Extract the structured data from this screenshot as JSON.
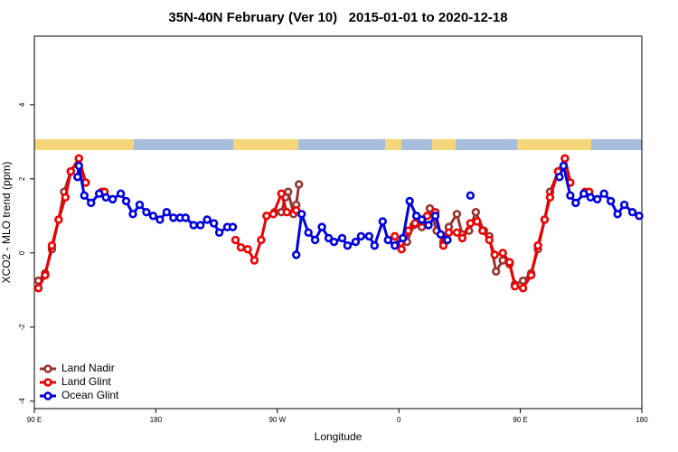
{
  "chart_data": {
    "type": "line",
    "title": "35N-40N February (Ver 10)   2015-01-01 to 2020-12-18",
    "x_label": "Longitude",
    "y_label": "XCO2 - MLO trend (ppm)",
    "xlim": [
      90,
      540
    ],
    "xticks": [
      {
        "value": 90,
        "label": "90 E"
      },
      {
        "value": 180,
        "label": "180"
      },
      {
        "value": 270,
        "label": "90 W"
      },
      {
        "value": 360,
        "label": "0"
      },
      {
        "value": 450,
        "label": "90 E"
      },
      {
        "value": 540,
        "label": "180"
      }
    ],
    "ylim": [
      -4.2,
      5.85
    ],
    "yticks": [
      -4,
      -2,
      0,
      2,
      4
    ],
    "legend": "bottom-left",
    "series": [
      {
        "name": "Land Nadir",
        "color": "#993333",
        "x": [
          93,
          98,
          103,
          108,
          112,
          117,
          123,
          128,
          null,
          268,
          273,
          276,
          278,
          282,
          284,
          286,
          null,
          366,
          371,
          377,
          383,
          388,
          393,
          397,
          403,
          407,
          412,
          417,
          423,
          427,
          432,
          437,
          442,
          446,
          452,
          458,
          463,
          468,
          472,
          478,
          483,
          487
        ],
        "values": [
          -0.75,
          -0.55,
          0.1,
          0.9,
          1.65,
          2.2,
          2.55,
          1.9,
          null,
          1.1,
          1.1,
          1.5,
          1.65,
          1.05,
          1.3,
          1.85,
          null,
          0.3,
          0.75,
          0.7,
          1.2,
          0.6,
          0.3,
          0.7,
          1.05,
          0.5,
          0.6,
          1.1,
          0.6,
          0.45,
          -0.5,
          -0.2,
          -0.3,
          -0.85,
          -0.75,
          -0.55,
          0.1,
          0.9,
          1.65,
          2.2,
          2.55,
          1.9
        ]
      },
      {
        "name": "Land Glint",
        "color": "#ee0000",
        "x": [
          93,
          98,
          103,
          108,
          113,
          117,
          123,
          128,
          null,
          140,
          142,
          null,
          239,
          243,
          248,
          253,
          258,
          262,
          267,
          273,
          277,
          284,
          null,
          357,
          362,
          367,
          372,
          377,
          381,
          387,
          393,
          397,
          403,
          407,
          413,
          418,
          422,
          427,
          431,
          437,
          442,
          446,
          452,
          458,
          463,
          468,
          472,
          478,
          483,
          487,
          null,
          498,
          501
        ],
        "values": [
          -0.95,
          -0.6,
          0.2,
          0.9,
          1.5,
          2.2,
          2.55,
          1.9,
          null,
          1.65,
          1.65,
          null,
          0.35,
          0.15,
          0.1,
          -0.2,
          0.35,
          1.0,
          1.05,
          1.6,
          1.1,
          1.15,
          null,
          0.45,
          0.1,
          0.6,
          0.8,
          0.85,
          1.0,
          1.1,
          0.2,
          0.55,
          0.55,
          0.4,
          0.8,
          0.85,
          0.6,
          0.35,
          -0.05,
          0.0,
          -0.25,
          -0.9,
          -0.95,
          -0.6,
          0.2,
          0.9,
          1.5,
          2.2,
          2.55,
          1.9,
          null,
          1.65,
          1.65
        ]
      },
      {
        "name": "Ocean Glint",
        "color": "#0000dd",
        "x": [
          122,
          123,
          127,
          132,
          138,
          143,
          148,
          154,
          158,
          163,
          168,
          173,
          178,
          183,
          188,
          193,
          198,
          202,
          208,
          213,
          218,
          223,
          227,
          233,
          237,
          null,
          284,
          288,
          293,
          298,
          303,
          308,
          312,
          318,
          322,
          328,
          332,
          338,
          342,
          348,
          352,
          357,
          363,
          368,
          373,
          377,
          382,
          387,
          391,
          396,
          null,
          413,
          null,
          479,
          482,
          487,
          491,
          497,
          502,
          507,
          512,
          517,
          522,
          527,
          533,
          538
        ],
        "values": [
          2.05,
          2.35,
          1.55,
          1.35,
          1.6,
          1.5,
          1.45,
          1.6,
          1.4,
          1.05,
          1.3,
          1.1,
          1.0,
          0.9,
          1.1,
          0.95,
          0.95,
          0.95,
          0.75,
          0.75,
          0.9,
          0.8,
          0.55,
          0.7,
          0.7,
          null,
          -0.05,
          1.05,
          0.55,
          0.35,
          0.7,
          0.4,
          0.3,
          0.4,
          0.2,
          0.3,
          0.45,
          0.45,
          0.2,
          0.85,
          0.35,
          0.2,
          0.4,
          1.4,
          1.0,
          0.9,
          0.75,
          1.0,
          0.5,
          0.35,
          null,
          1.55,
          null,
          2.05,
          2.35,
          1.55,
          1.35,
          1.6,
          1.5,
          1.45,
          1.6,
          1.4,
          1.05,
          1.3,
          1.1,
          1.0
        ]
      }
    ]
  }
}
